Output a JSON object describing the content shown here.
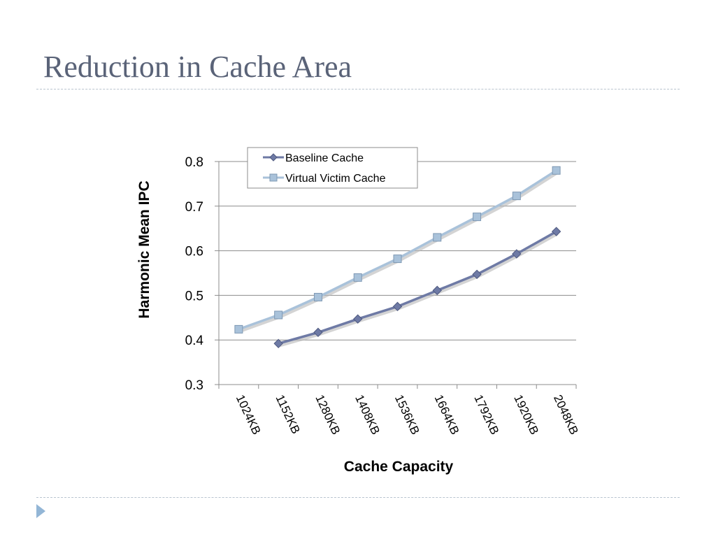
{
  "slide": {
    "title": "Reduction in Cache Area",
    "nav_icon": "triangle-right-icon"
  },
  "chart_data": {
    "type": "line",
    "categories": [
      "1024KB",
      "1152KB",
      "1280KB",
      "1408KB",
      "1536KB",
      "1664KB",
      "1792KB",
      "1920KB",
      "2048KB"
    ],
    "series": [
      {
        "name": "Baseline Cache",
        "color": "#6e7aa5",
        "marker": "diamond",
        "values": [
          null,
          0.392,
          0.417,
          0.447,
          0.475,
          0.511,
          0.547,
          0.593,
          0.643
        ]
      },
      {
        "name": "Virtual Victim Cache",
        "color": "#a9c2da",
        "marker": "square",
        "values": [
          0.424,
          0.456,
          0.496,
          0.54,
          0.582,
          0.63,
          0.676,
          0.723,
          0.78
        ]
      }
    ],
    "xlabel": "Cache Capacity",
    "ylabel": "Harmonic Mean IPC",
    "ylim": [
      0.3,
      0.8
    ],
    "yticks": [
      "0.3",
      "0.4",
      "0.5",
      "0.6",
      "0.7",
      "0.8"
    ],
    "grid": true,
    "legend_position": "top-left"
  }
}
